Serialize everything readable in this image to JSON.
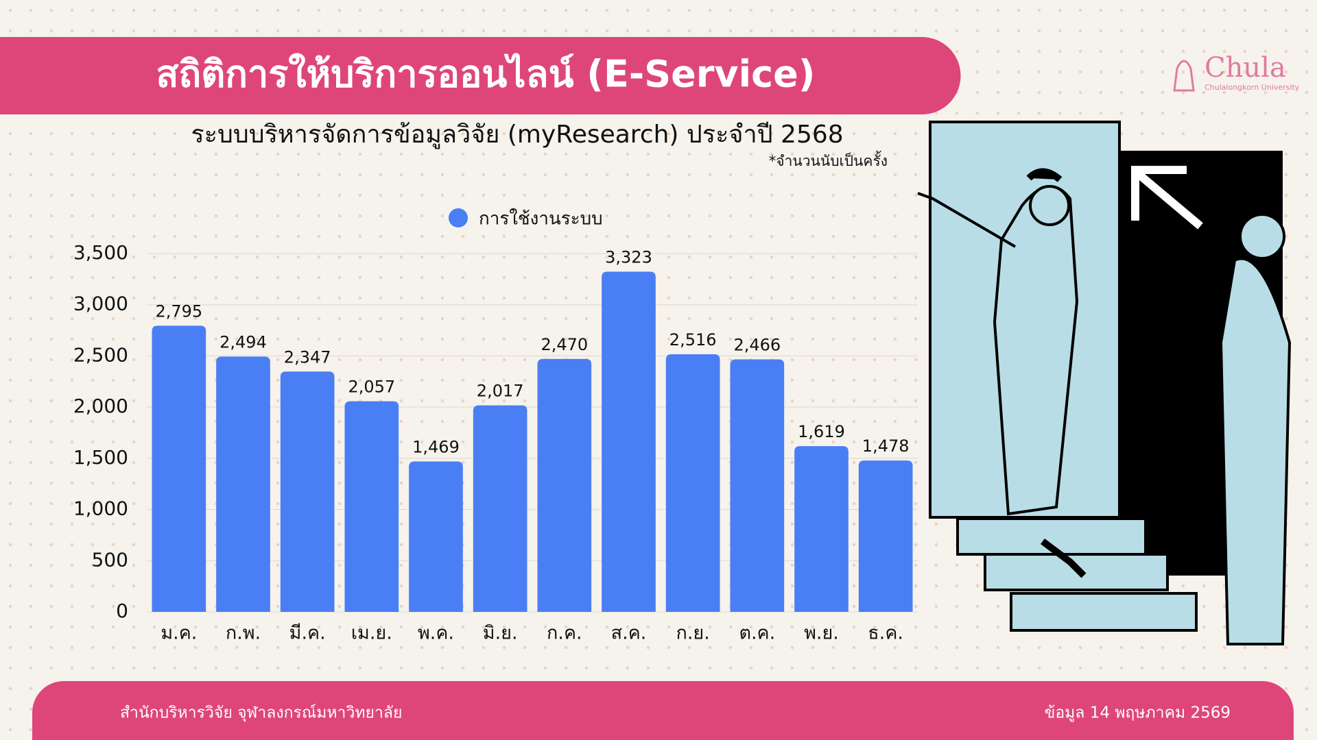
{
  "header": {
    "title": "สถิติการให้บริการออนไลน์ (E-Service)"
  },
  "logo": {
    "name": "Chula",
    "subtitle": "Chulalongkorn University"
  },
  "chart_data": {
    "type": "bar",
    "title": "ระบบบริหารจัดการข้อมูลวิจัย (myResearch) ประจำปี 2568",
    "subtitle": "*จำนวนนับเป็นครั้ง",
    "categories": [
      "ม.ค.",
      "ก.พ.",
      "มี.ค.",
      "เม.ย.",
      "พ.ค.",
      "มิ.ย.",
      "ก.ค.",
      "ส.ค.",
      "ก.ย.",
      "ต.ค.",
      "พ.ย.",
      "ธ.ค."
    ],
    "series": [
      {
        "name": "การใช้งานระบบ",
        "color": "#4a7ef5",
        "values": [
          2795,
          2494,
          2347,
          2057,
          1469,
          2017,
          2470,
          3323,
          2516,
          2466,
          1619,
          1478
        ],
        "value_labels": [
          "2,795",
          "2,494",
          "2,347",
          "2,057",
          "1,469",
          "2,017",
          "2,470",
          "3,323",
          "2,516",
          "2,466",
          "1,619",
          "1,478"
        ]
      }
    ],
    "ylim": [
      0,
      3500
    ],
    "yticks": [
      0,
      500,
      {
        "value": 1000,
        "label": "1,000"
      },
      {
        "value": 1500,
        "label": "1,500"
      },
      {
        "value": 2000,
        "label": "2,000"
      },
      {
        "value": 2500,
        "label": "2,500"
      },
      {
        "value": 3000,
        "label": "3,000"
      },
      {
        "value": 3500,
        "label": "3,500"
      }
    ],
    "grid": true,
    "legend": "top"
  },
  "footer": {
    "left": "สำนักบริหารวิจัย จุฬาลงกรณ์มหาวิทยาลัย",
    "right": "ข้อมูล 14 พฤษภาคม 2569"
  }
}
